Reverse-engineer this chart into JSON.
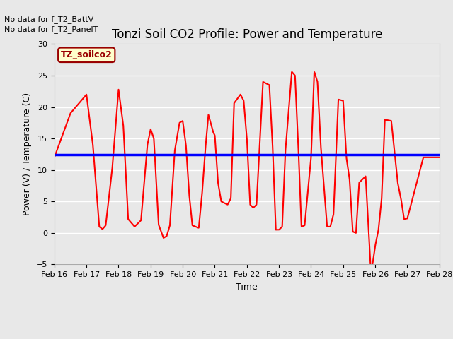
{
  "title": "Tonzi Soil CO2 Profile: Power and Temperature",
  "xlabel": "Time",
  "ylabel": "Power (V) / Temperature (C)",
  "ylim": [
    -5,
    30
  ],
  "yticks": [
    -5,
    0,
    5,
    10,
    15,
    20,
    25,
    30
  ],
  "x_tick_labels": [
    "Feb 16",
    "Feb 17",
    "Feb 18",
    "Feb 19",
    "Feb 20",
    "Feb 21",
    "Feb 22",
    "Feb 23",
    "Feb 24",
    "Feb 25",
    "Feb 26",
    "Feb 27",
    "Feb 28"
  ],
  "no_data_text1": "No data for f_T2_BattV",
  "no_data_text2": "No data for f_T2_PanelT",
  "legend_box_label": "TZ_soilco2",
  "legend_box_color": "#ffffcc",
  "legend_box_border": "#990000",
  "temp_color": "#ff0000",
  "voltage_color": "#0000ff",
  "voltage_value": 12.4,
  "background_color": "#e8e8e8",
  "plot_bg_color": "#e8e8e8",
  "grid_color": "#ffffff",
  "title_fontsize": 12,
  "axis_label_fontsize": 9,
  "tick_fontsize": 8,
  "temp_linewidth": 1.5,
  "voltage_linewidth": 2.5,
  "temp_key_points": [
    [
      16.0,
      12.0
    ],
    [
      16.5,
      19.0
    ],
    [
      17.0,
      22.0
    ],
    [
      17.2,
      14.0
    ],
    [
      17.4,
      1.0
    ],
    [
      17.5,
      0.6
    ],
    [
      17.6,
      1.2
    ],
    [
      17.8,
      10.0
    ],
    [
      18.0,
      22.8
    ],
    [
      18.15,
      17.0
    ],
    [
      18.3,
      2.2
    ],
    [
      18.5,
      1.0
    ],
    [
      18.7,
      2.0
    ],
    [
      18.9,
      14.0
    ],
    [
      19.0,
      16.5
    ],
    [
      19.1,
      15.0
    ],
    [
      19.25,
      1.3
    ],
    [
      19.4,
      -0.8
    ],
    [
      19.5,
      -0.5
    ],
    [
      19.6,
      1.2
    ],
    [
      19.75,
      13.0
    ],
    [
      19.9,
      17.5
    ],
    [
      20.0,
      17.8
    ],
    [
      20.1,
      14.0
    ],
    [
      20.2,
      6.2
    ],
    [
      20.3,
      1.2
    ],
    [
      20.5,
      0.8
    ],
    [
      20.6,
      6.0
    ],
    [
      20.7,
      13.0
    ],
    [
      20.8,
      18.8
    ],
    [
      20.95,
      16.0
    ],
    [
      21.0,
      15.5
    ],
    [
      21.1,
      8.0
    ],
    [
      21.2,
      5.0
    ],
    [
      21.4,
      4.5
    ],
    [
      21.5,
      5.5
    ],
    [
      21.6,
      20.6
    ],
    [
      21.8,
      22.0
    ],
    [
      21.9,
      21.0
    ],
    [
      22.0,
      15.0
    ],
    [
      22.1,
      4.5
    ],
    [
      22.2,
      4.0
    ],
    [
      22.3,
      4.5
    ],
    [
      22.5,
      24.0
    ],
    [
      22.7,
      23.5
    ],
    [
      22.8,
      14.0
    ],
    [
      22.9,
      0.5
    ],
    [
      23.0,
      0.5
    ],
    [
      23.1,
      1.0
    ],
    [
      23.2,
      13.0
    ],
    [
      23.4,
      25.6
    ],
    [
      23.5,
      25.0
    ],
    [
      23.6,
      14.0
    ],
    [
      23.7,
      1.0
    ],
    [
      23.8,
      1.2
    ],
    [
      24.0,
      12.0
    ],
    [
      24.1,
      25.6
    ],
    [
      24.2,
      24.0
    ],
    [
      24.3,
      14.0
    ],
    [
      24.5,
      1.0
    ],
    [
      24.6,
      1.0
    ],
    [
      24.7,
      3.0
    ],
    [
      24.85,
      21.2
    ],
    [
      25.0,
      21.0
    ],
    [
      25.1,
      12.0
    ],
    [
      25.2,
      8.5
    ],
    [
      25.3,
      0.2
    ],
    [
      25.4,
      0.0
    ],
    [
      25.5,
      8.0
    ],
    [
      25.6,
      8.5
    ],
    [
      25.7,
      9.0
    ],
    [
      25.8,
      0.0
    ],
    [
      25.85,
      -5.0
    ],
    [
      25.9,
      -5.5
    ],
    [
      26.0,
      -2.0
    ],
    [
      26.1,
      0.5
    ],
    [
      26.2,
      5.5
    ],
    [
      26.3,
      18.0
    ],
    [
      26.5,
      17.8
    ],
    [
      26.7,
      8.0
    ],
    [
      26.8,
      5.5
    ],
    [
      26.9,
      2.2
    ],
    [
      27.0,
      2.3
    ],
    [
      27.5,
      12.0
    ],
    [
      28.0,
      12.0
    ]
  ]
}
